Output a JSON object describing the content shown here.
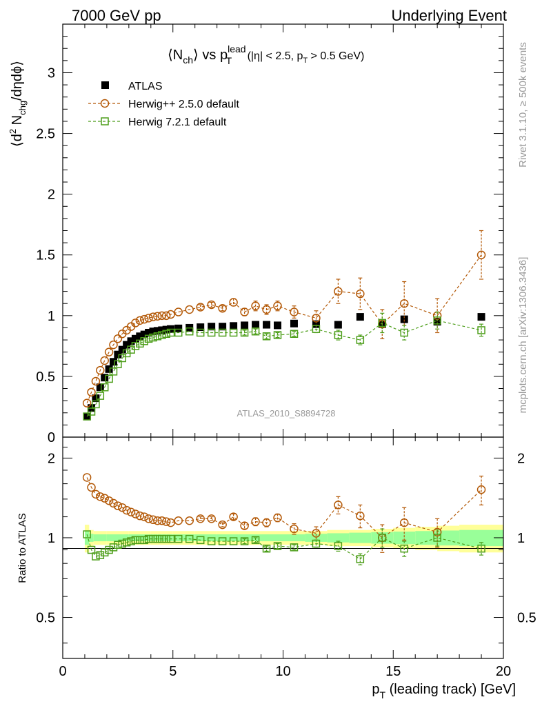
{
  "header": {
    "left": "7000 GeV pp",
    "right": "Underlying Event"
  },
  "side": {
    "rivet": "Rivet 3.1.10, ≥ 500k events",
    "mcplots": "mcplots.cern.ch [arXiv:1306.3436]"
  },
  "title": {
    "lhs": "⟨N",
    "lhs_sub": "ch",
    "mid": "⟩ vs p",
    "mid_sup": "lead",
    "mid_sub": "T",
    "cut_a": " (|η| < 2.5, p",
    "cut_sub": "T",
    "cut_b": " > 0.5 GeV)"
  },
  "ylabel_top": {
    "open": "⟨d",
    "sup": "2",
    "n": " N",
    "sub": "chg",
    "rest": "/dηdϕ⟩"
  },
  "ylabel_bottom": "Ratio to ATLAS",
  "xlabel": {
    "p": "p",
    "sub": "T",
    "rest": " (leading track) [GeV]"
  },
  "watermark": "ATLAS_2010_S8894728",
  "legend": [
    "ATLAS",
    "Herwig++ 2.5.0 default",
    "Herwig 7.2.1 default"
  ],
  "colors": {
    "atlas": "#000000",
    "herwigpp": "#b35806",
    "herwig7": "#4d9e1a",
    "band_outer": "#ffff99",
    "band_inner": "#99ff99"
  },
  "chart_data": {
    "type": "scatter",
    "xlabel": "pT (leading track) [GeV]",
    "ylabel": "<d2 Nchg/deta dphi>",
    "xlim": [
      0,
      20
    ],
    "ylim_main": [
      0,
      3.4
    ],
    "ylim_ratio": [
      0.35,
      2.4
    ],
    "ticks_main": [
      0,
      0.5,
      1,
      1.5,
      2,
      2.5,
      3
    ],
    "tick_labels_main": [
      "0",
      "0.5",
      "1",
      "1.5",
      "2",
      "2.5",
      "3"
    ],
    "ticks_ratio": [
      0.5,
      1,
      2
    ],
    "tick_labels_ratio": [
      "0.5",
      "1",
      "2"
    ],
    "ticks_x": [
      0,
      5,
      10,
      15,
      20
    ],
    "tick_labels_x": [
      "0",
      "5",
      "10",
      "15",
      "20"
    ],
    "x": [
      1.1,
      1.3,
      1.5,
      1.7,
      1.9,
      2.1,
      2.3,
      2.5,
      2.7,
      2.9,
      3.1,
      3.3,
      3.5,
      3.7,
      3.9,
      4.1,
      4.3,
      4.5,
      4.7,
      4.9,
      5.25,
      5.75,
      6.25,
      6.75,
      7.25,
      7.75,
      8.25,
      8.75,
      9.25,
      9.75,
      10.5,
      11.5,
      12.5,
      13.5,
      14.5,
      15.5,
      17.0,
      19.0
    ],
    "series": [
      {
        "name": "ATLAS",
        "values": [
          0.17,
          0.24,
          0.32,
          0.41,
          0.49,
          0.56,
          0.62,
          0.68,
          0.72,
          0.76,
          0.79,
          0.81,
          0.83,
          0.845,
          0.86,
          0.87,
          0.875,
          0.88,
          0.885,
          0.89,
          0.895,
          0.9,
          0.905,
          0.91,
          0.91,
          0.915,
          0.92,
          0.925,
          0.925,
          0.92,
          0.935,
          0.93,
          0.925,
          0.99,
          0.93,
          0.97,
          0.95,
          0.99
        ],
        "errors": [
          0.01,
          0.01,
          0.01,
          0.01,
          0.01,
          0.01,
          0.01,
          0.01,
          0.01,
          0.01,
          0.01,
          0.01,
          0.01,
          0.01,
          0.01,
          0.01,
          0.01,
          0.01,
          0.01,
          0.01,
          0.01,
          0.01,
          0.01,
          0.01,
          0.01,
          0.01,
          0.01,
          0.01,
          0.01,
          0.01,
          0.01,
          0.01,
          0.01,
          0.01,
          0.01,
          0.01,
          0.01,
          0.01
        ]
      },
      {
        "name": "Herwig++ 2.5.0 default",
        "values": [
          0.28,
          0.37,
          0.46,
          0.55,
          0.63,
          0.7,
          0.76,
          0.81,
          0.85,
          0.88,
          0.91,
          0.94,
          0.96,
          0.97,
          0.98,
          0.99,
          0.995,
          1.0,
          1.0,
          1.01,
          1.03,
          1.05,
          1.07,
          1.09,
          1.06,
          1.11,
          1.03,
          1.08,
          1.05,
          1.08,
          1.03,
          0.98,
          1.2,
          1.18,
          0.93,
          1.1,
          1.0,
          1.5
        ],
        "errors": [
          0.01,
          0.01,
          0.01,
          0.01,
          0.01,
          0.01,
          0.01,
          0.01,
          0.01,
          0.01,
          0.01,
          0.01,
          0.01,
          0.01,
          0.01,
          0.01,
          0.01,
          0.01,
          0.01,
          0.01,
          0.01,
          0.01,
          0.02,
          0.02,
          0.02,
          0.03,
          0.03,
          0.04,
          0.04,
          0.04,
          0.05,
          0.06,
          0.1,
          0.13,
          0.12,
          0.18,
          0.14,
          0.2
        ]
      },
      {
        "name": "Herwig 7.2.1 default",
        "values": [
          0.17,
          0.21,
          0.27,
          0.34,
          0.41,
          0.48,
          0.54,
          0.6,
          0.65,
          0.69,
          0.72,
          0.75,
          0.77,
          0.79,
          0.81,
          0.82,
          0.83,
          0.84,
          0.85,
          0.86,
          0.86,
          0.87,
          0.86,
          0.86,
          0.86,
          0.86,
          0.86,
          0.87,
          0.83,
          0.84,
          0.85,
          0.89,
          0.84,
          0.8,
          0.94,
          0.86,
          0.96,
          0.88
        ],
        "errors": [
          0.01,
          0.01,
          0.01,
          0.01,
          0.01,
          0.01,
          0.01,
          0.01,
          0.01,
          0.01,
          0.01,
          0.01,
          0.01,
          0.01,
          0.01,
          0.01,
          0.01,
          0.01,
          0.01,
          0.01,
          0.01,
          0.01,
          0.01,
          0.01,
          0.01,
          0.01,
          0.02,
          0.02,
          0.02,
          0.02,
          0.02,
          0.03,
          0.04,
          0.04,
          0.08,
          0.06,
          0.07,
          0.05
        ]
      }
    ],
    "ratio_series": [
      {
        "name": "Herwig++ 2.5.0 default",
        "values": [
          1.69,
          1.55,
          1.46,
          1.43,
          1.41,
          1.38,
          1.35,
          1.32,
          1.3,
          1.27,
          1.25,
          1.23,
          1.21,
          1.2,
          1.18,
          1.17,
          1.16,
          1.16,
          1.15,
          1.14,
          1.16,
          1.16,
          1.18,
          1.18,
          1.12,
          1.2,
          1.11,
          1.15,
          1.14,
          1.19,
          1.08,
          1.04,
          1.33,
          1.21,
          1.0,
          1.14,
          1.05,
          1.52
        ],
        "errors": [
          0.01,
          0.01,
          0.01,
          0.01,
          0.01,
          0.01,
          0.01,
          0.01,
          0.01,
          0.01,
          0.01,
          0.01,
          0.01,
          0.01,
          0.01,
          0.01,
          0.01,
          0.01,
          0.01,
          0.01,
          0.01,
          0.01,
          0.02,
          0.02,
          0.02,
          0.03,
          0.03,
          0.04,
          0.04,
          0.04,
          0.05,
          0.06,
          0.1,
          0.12,
          0.12,
          0.16,
          0.13,
          0.19
        ]
      },
      {
        "name": "Herwig 7.2.1 default",
        "values": [
          1.03,
          0.9,
          0.85,
          0.86,
          0.88,
          0.9,
          0.92,
          0.94,
          0.95,
          0.96,
          0.97,
          0.98,
          0.98,
          0.98,
          0.99,
          0.99,
          0.99,
          0.99,
          0.99,
          0.99,
          0.99,
          0.99,
          0.98,
          0.97,
          0.97,
          0.97,
          0.97,
          0.98,
          0.91,
          0.93,
          0.92,
          0.95,
          0.93,
          0.83,
          1.0,
          0.91,
          1.0,
          0.91
        ],
        "errors": [
          0.01,
          0.01,
          0.01,
          0.01,
          0.01,
          0.01,
          0.01,
          0.01,
          0.01,
          0.01,
          0.01,
          0.01,
          0.01,
          0.01,
          0.01,
          0.01,
          0.01,
          0.01,
          0.01,
          0.01,
          0.01,
          0.01,
          0.01,
          0.01,
          0.01,
          0.01,
          0.02,
          0.02,
          0.02,
          0.02,
          0.02,
          0.03,
          0.04,
          0.04,
          0.08,
          0.06,
          0.07,
          0.05
        ]
      }
    ],
    "band": {
      "x_edges": [
        1.0,
        1.2,
        1.4,
        2.0,
        3.0,
        4.0,
        5.0,
        6.0,
        7.0,
        8.0,
        9.0,
        10.0,
        11.0,
        12.0,
        13.0,
        14.0,
        15.0,
        16.0,
        17.0,
        18.0,
        20.0
      ],
      "outer": [
        0.12,
        0.07,
        0.06,
        0.06,
        0.06,
        0.06,
        0.06,
        0.06,
        0.06,
        0.06,
        0.06,
        0.06,
        0.06,
        0.07,
        0.07,
        0.08,
        0.09,
        0.1,
        0.11,
        0.12
      ],
      "inner": [
        0.06,
        0.035,
        0.03,
        0.03,
        0.03,
        0.03,
        0.03,
        0.03,
        0.03,
        0.03,
        0.03,
        0.03,
        0.035,
        0.04,
        0.045,
        0.05,
        0.055,
        0.06,
        0.065,
        0.07
      ]
    }
  }
}
